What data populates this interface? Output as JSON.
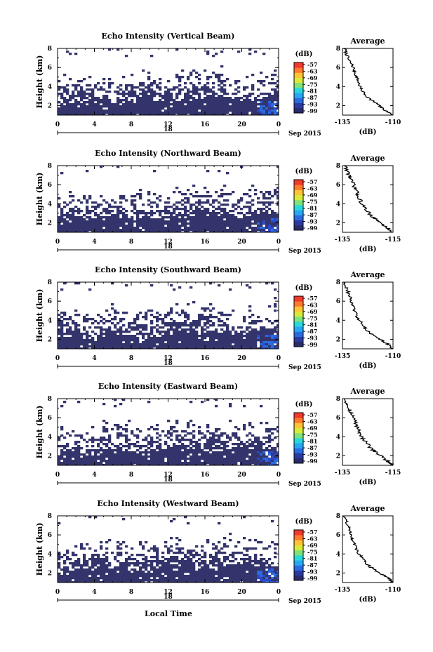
{
  "chart_data": {
    "type": "heatmap",
    "date": "Sep 2015",
    "day": "18",
    "shared_xlabel": "Local Time",
    "colorbar_unit": "(dB)",
    "colorbar_ticks": [
      "-57",
      "-63",
      "-69",
      "-75",
      "-81",
      "-87",
      "-93",
      "-99"
    ],
    "colorscale": [
      "#2b2a6b",
      "#2b3a9e",
      "#2a6be0",
      "#27a8f2",
      "#29d8dc",
      "#7fe27a",
      "#d9ea3a",
      "#ffc437",
      "#ff7a2e",
      "#f23a2c"
    ],
    "x_ticks": [
      "0",
      "4",
      "8",
      "12",
      "16",
      "20",
      "0"
    ],
    "xlim": [
      0,
      24
    ],
    "ylim": [
      1,
      8
    ],
    "y_ticks": [
      "2",
      "4",
      "6",
      "8"
    ],
    "ylabel": "Height (km)",
    "avg_title": "Average",
    "avg_xlabel": "(dB)",
    "avg_ylim": [
      1,
      8
    ],
    "avg_y_ticks": [
      "2",
      "4",
      "6",
      "8"
    ],
    "panels": [
      {
        "title": "Echo Intensity (Vertical Beam)",
        "avg_x_ticks": [
          "-135",
          "-110"
        ],
        "avg_xlim": [
          -135,
          -110
        ],
        "avg_profile": {
          "height": [
            8,
            7.4,
            6.8,
            6.2,
            5.6,
            5.0,
            4.4,
            3.8,
            3.2,
            2.6,
            2.2,
            1.8,
            1.4,
            1.0
          ],
          "db": [
            -134,
            -133,
            -132,
            -130,
            -129,
            -128,
            -127,
            -126,
            -124,
            -121,
            -118,
            -116,
            -113,
            -110
          ]
        }
      },
      {
        "title": "Echo Intensity (Northward Beam)",
        "avg_x_ticks": [
          "-135",
          "-115"
        ],
        "avg_xlim": [
          -135,
          -115
        ],
        "avg_profile": {
          "height": [
            8,
            7.4,
            6.8,
            6.2,
            5.6,
            5.0,
            4.4,
            3.8,
            3.2,
            2.6,
            2.2,
            1.8,
            1.4,
            1.0
          ],
          "db": [
            -134,
            -133,
            -132,
            -131,
            -130,
            -129,
            -128,
            -127,
            -125,
            -123,
            -121,
            -119,
            -117,
            -115
          ]
        }
      },
      {
        "title": "Echo Intensity (Southward Beam)",
        "avg_x_ticks": [
          "-135",
          "-110"
        ],
        "avg_xlim": [
          -135,
          -110
        ],
        "avg_profile": {
          "height": [
            8,
            7.4,
            6.8,
            6.2,
            5.6,
            5.0,
            4.4,
            3.8,
            3.2,
            2.6,
            2.2,
            1.8,
            1.4,
            1.0
          ],
          "db": [
            -134,
            -133,
            -132,
            -131,
            -130,
            -129,
            -128,
            -126,
            -124,
            -121,
            -118,
            -115,
            -112,
            -110
          ]
        }
      },
      {
        "title": "Echo Intensity (Eastward Beam)",
        "avg_x_ticks": [
          "-135",
          "-115"
        ],
        "avg_xlim": [
          -135,
          -115
        ],
        "avg_profile": {
          "height": [
            8,
            7.4,
            6.8,
            6.2,
            5.6,
            5.0,
            4.4,
            3.8,
            3.2,
            2.6,
            2.2,
            1.8,
            1.4,
            1.0
          ],
          "db": [
            -134,
            -133,
            -132,
            -131,
            -130,
            -129,
            -128,
            -127,
            -125,
            -123,
            -121,
            -119,
            -117,
            -115
          ]
        }
      },
      {
        "title": "Echo Intensity (Westward Beam)",
        "avg_x_ticks": [
          "-135",
          "-110"
        ],
        "avg_xlim": [
          -135,
          -110
        ],
        "avg_profile": {
          "height": [
            8,
            7.4,
            6.8,
            6.2,
            5.6,
            5.0,
            4.4,
            3.8,
            3.2,
            2.6,
            2.2,
            1.8,
            1.4,
            1.0
          ],
          "db": [
            -134,
            -133,
            -132,
            -131,
            -130,
            -129,
            -128,
            -126,
            -124,
            -121,
            -118,
            -115,
            -112,
            -110
          ]
        }
      }
    ]
  }
}
